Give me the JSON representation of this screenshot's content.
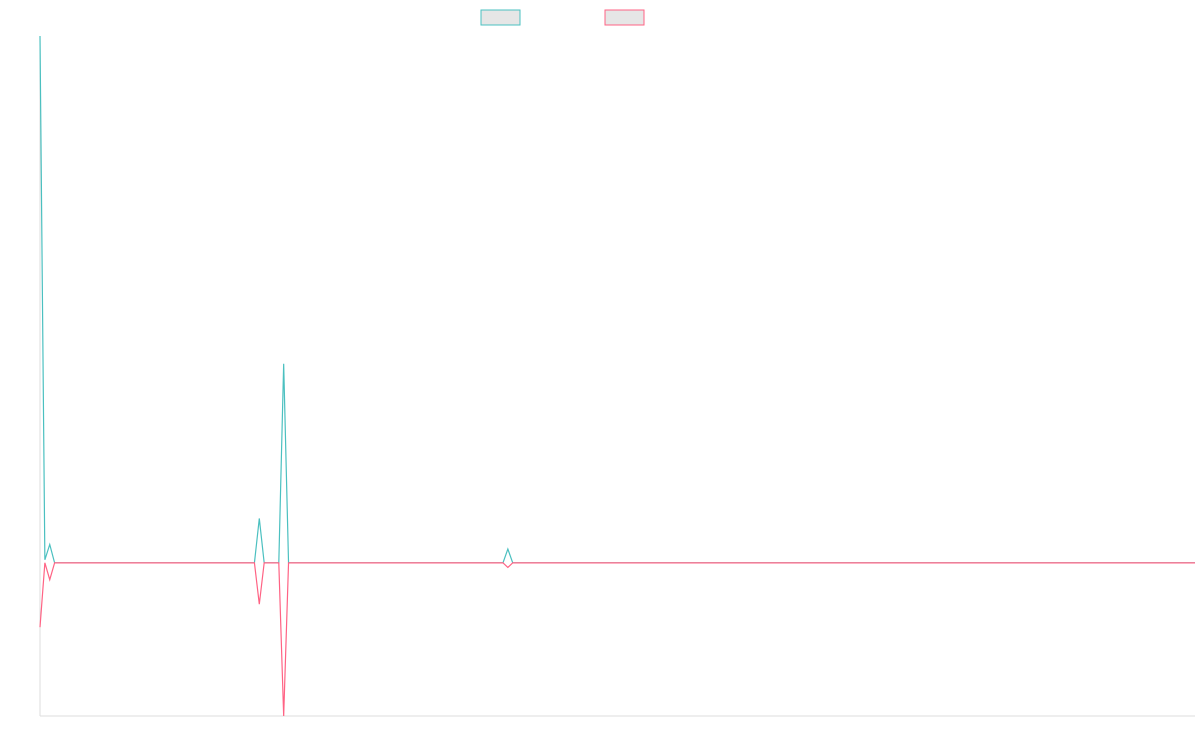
{
  "chart_data": {
    "type": "line",
    "x": [
      0,
      1,
      2,
      3,
      44,
      45,
      46,
      49,
      50,
      51,
      95,
      96,
      97,
      237
    ],
    "series": [
      {
        "color": "#4bc0c0",
        "values": [
          3.44,
          0.02,
          0.12,
          0,
          0,
          0.29,
          0,
          0,
          1.3,
          0,
          0,
          0.09,
          0,
          0
        ]
      },
      {
        "color": "#ff6384",
        "values": [
          -0.42,
          0,
          -0.11,
          0,
          0,
          -0.27,
          0,
          0,
          -1,
          0,
          0,
          -0.03,
          0,
          0
        ]
      }
    ],
    "xlim": [
      0,
      237
    ],
    "ylim": [
      -1,
      3.44
    ]
  }
}
